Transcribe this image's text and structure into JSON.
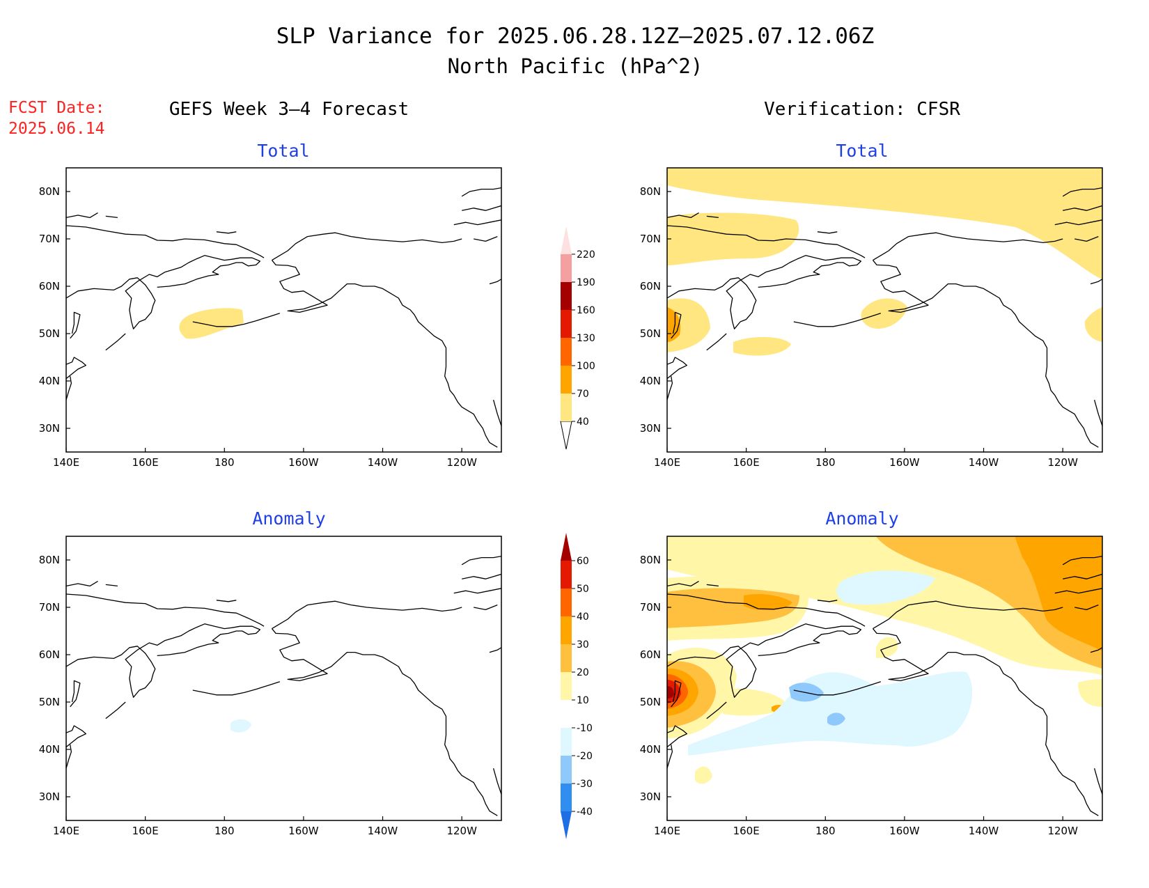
{
  "title_line1": "SLP Variance for 2025.06.28.12Z–2025.07.12.06Z",
  "title_line2": "North Pacific (hPa^2)",
  "fcst_date_label": "FCST Date:",
  "fcst_date_value": "2025.06.14",
  "left_header": "GEFS Week 3–4 Forecast",
  "right_header": "Verification: CFSR",
  "panels": [
    {
      "id": "fcst-total",
      "subtitle": "Total"
    },
    {
      "id": "cfsr-total",
      "subtitle": "Total"
    },
    {
      "id": "fcst-anomaly",
      "subtitle": "Anomaly"
    },
    {
      "id": "cfsr-anomaly",
      "subtitle": "Anomaly"
    }
  ],
  "map_extent": {
    "lon": [
      140,
      250
    ],
    "lat": [
      25,
      85
    ]
  },
  "lon_ticks": [
    {
      "lon": 140,
      "label": "140E"
    },
    {
      "lon": 160,
      "label": "160E"
    },
    {
      "lon": 180,
      "label": "180"
    },
    {
      "lon": 200,
      "label": "160W"
    },
    {
      "lon": 220,
      "label": "140W"
    },
    {
      "lon": 240,
      "label": "120W"
    }
  ],
  "lat_ticks": [
    {
      "lat": 30,
      "label": "30N"
    },
    {
      "lat": 40,
      "label": "40N"
    },
    {
      "lat": 50,
      "label": "50N"
    },
    {
      "lat": 60,
      "label": "60N"
    },
    {
      "lat": 70,
      "label": "70N"
    },
    {
      "lat": 80,
      "label": "80N"
    }
  ],
  "total_colorbar": {
    "levels": [
      "40",
      "70",
      "100",
      "130",
      "160",
      "190",
      "220"
    ],
    "colors": [
      "#ffe680",
      "#ffa500",
      "#ff6600",
      "#e31a00",
      "#a50000",
      "#f4a0a0",
      "#fde0e0"
    ]
  },
  "anomaly_colorbar": {
    "levels": [
      "-40",
      "-30",
      "-20",
      "-10",
      "10",
      "20",
      "30",
      "40",
      "50",
      "60"
    ],
    "colors": [
      "#1e6ee6",
      "#2f8ef0",
      "#8fc8fa",
      "#dff7ff",
      "#ffffff",
      "#fff6a8",
      "#ffc040",
      "#ffa500",
      "#ff6600",
      "#e31a00",
      "#a50000"
    ]
  },
  "colors": {
    "title_blue": "#1f3fe6",
    "fcst_red": "#ff2020"
  }
}
